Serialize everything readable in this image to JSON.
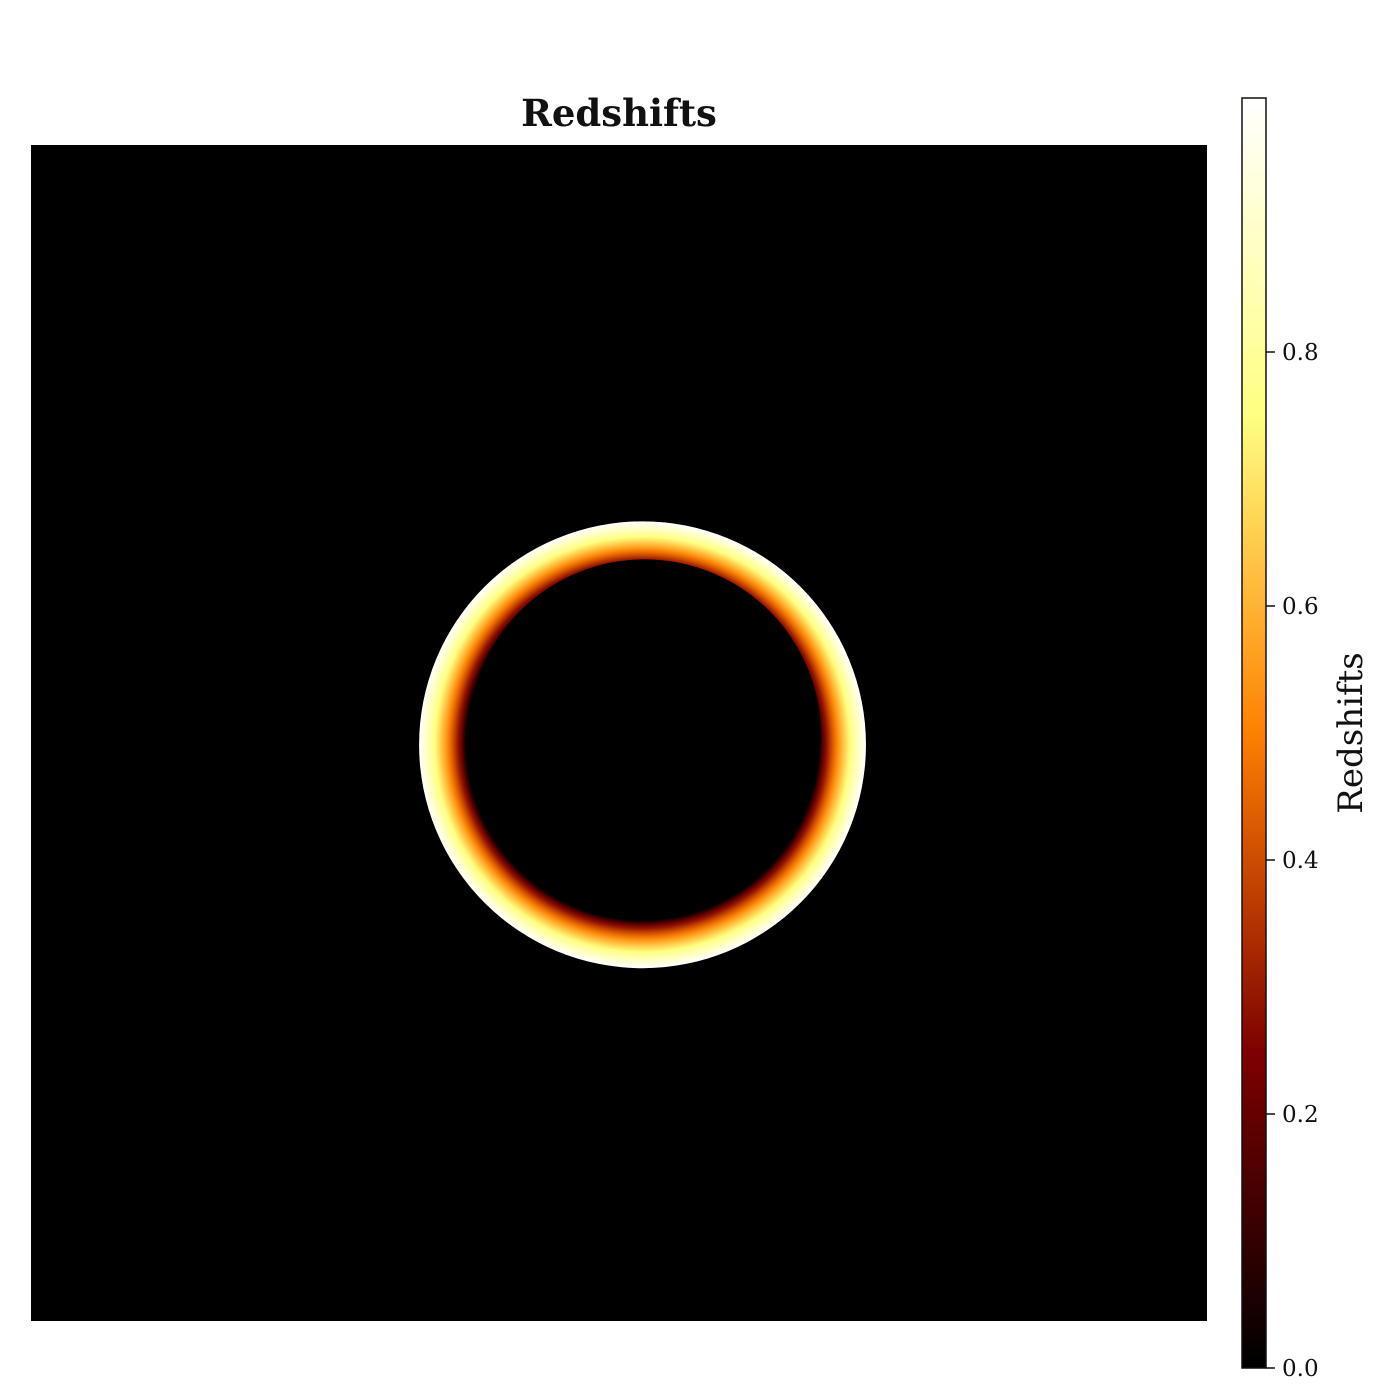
{
  "chart_data": {
    "type": "heatmap",
    "title": "Redshifts",
    "colormap": "afmhot",
    "colormap_stops": [
      "#000000",
      "#800000",
      "#ff8000",
      "#ffff80",
      "#ffffff"
    ],
    "background_value": 0.0,
    "image": {
      "ring_center": [
        0.52,
        0.51
      ],
      "outer_radius": 0.19,
      "inner_radius": 0.15,
      "outer_edge_value": 1.0,
      "inner_edge_value": 0.0,
      "inner_disk_value": 0.0
    },
    "colorbar": {
      "label": "Redshifts",
      "vmin": 0.0,
      "vmax": 1.0,
      "ticks": [
        0.0,
        0.2,
        0.4,
        0.6,
        0.8
      ],
      "tick_labels": [
        "0.0",
        "0.2",
        "0.4",
        "0.6",
        "0.8"
      ]
    }
  }
}
